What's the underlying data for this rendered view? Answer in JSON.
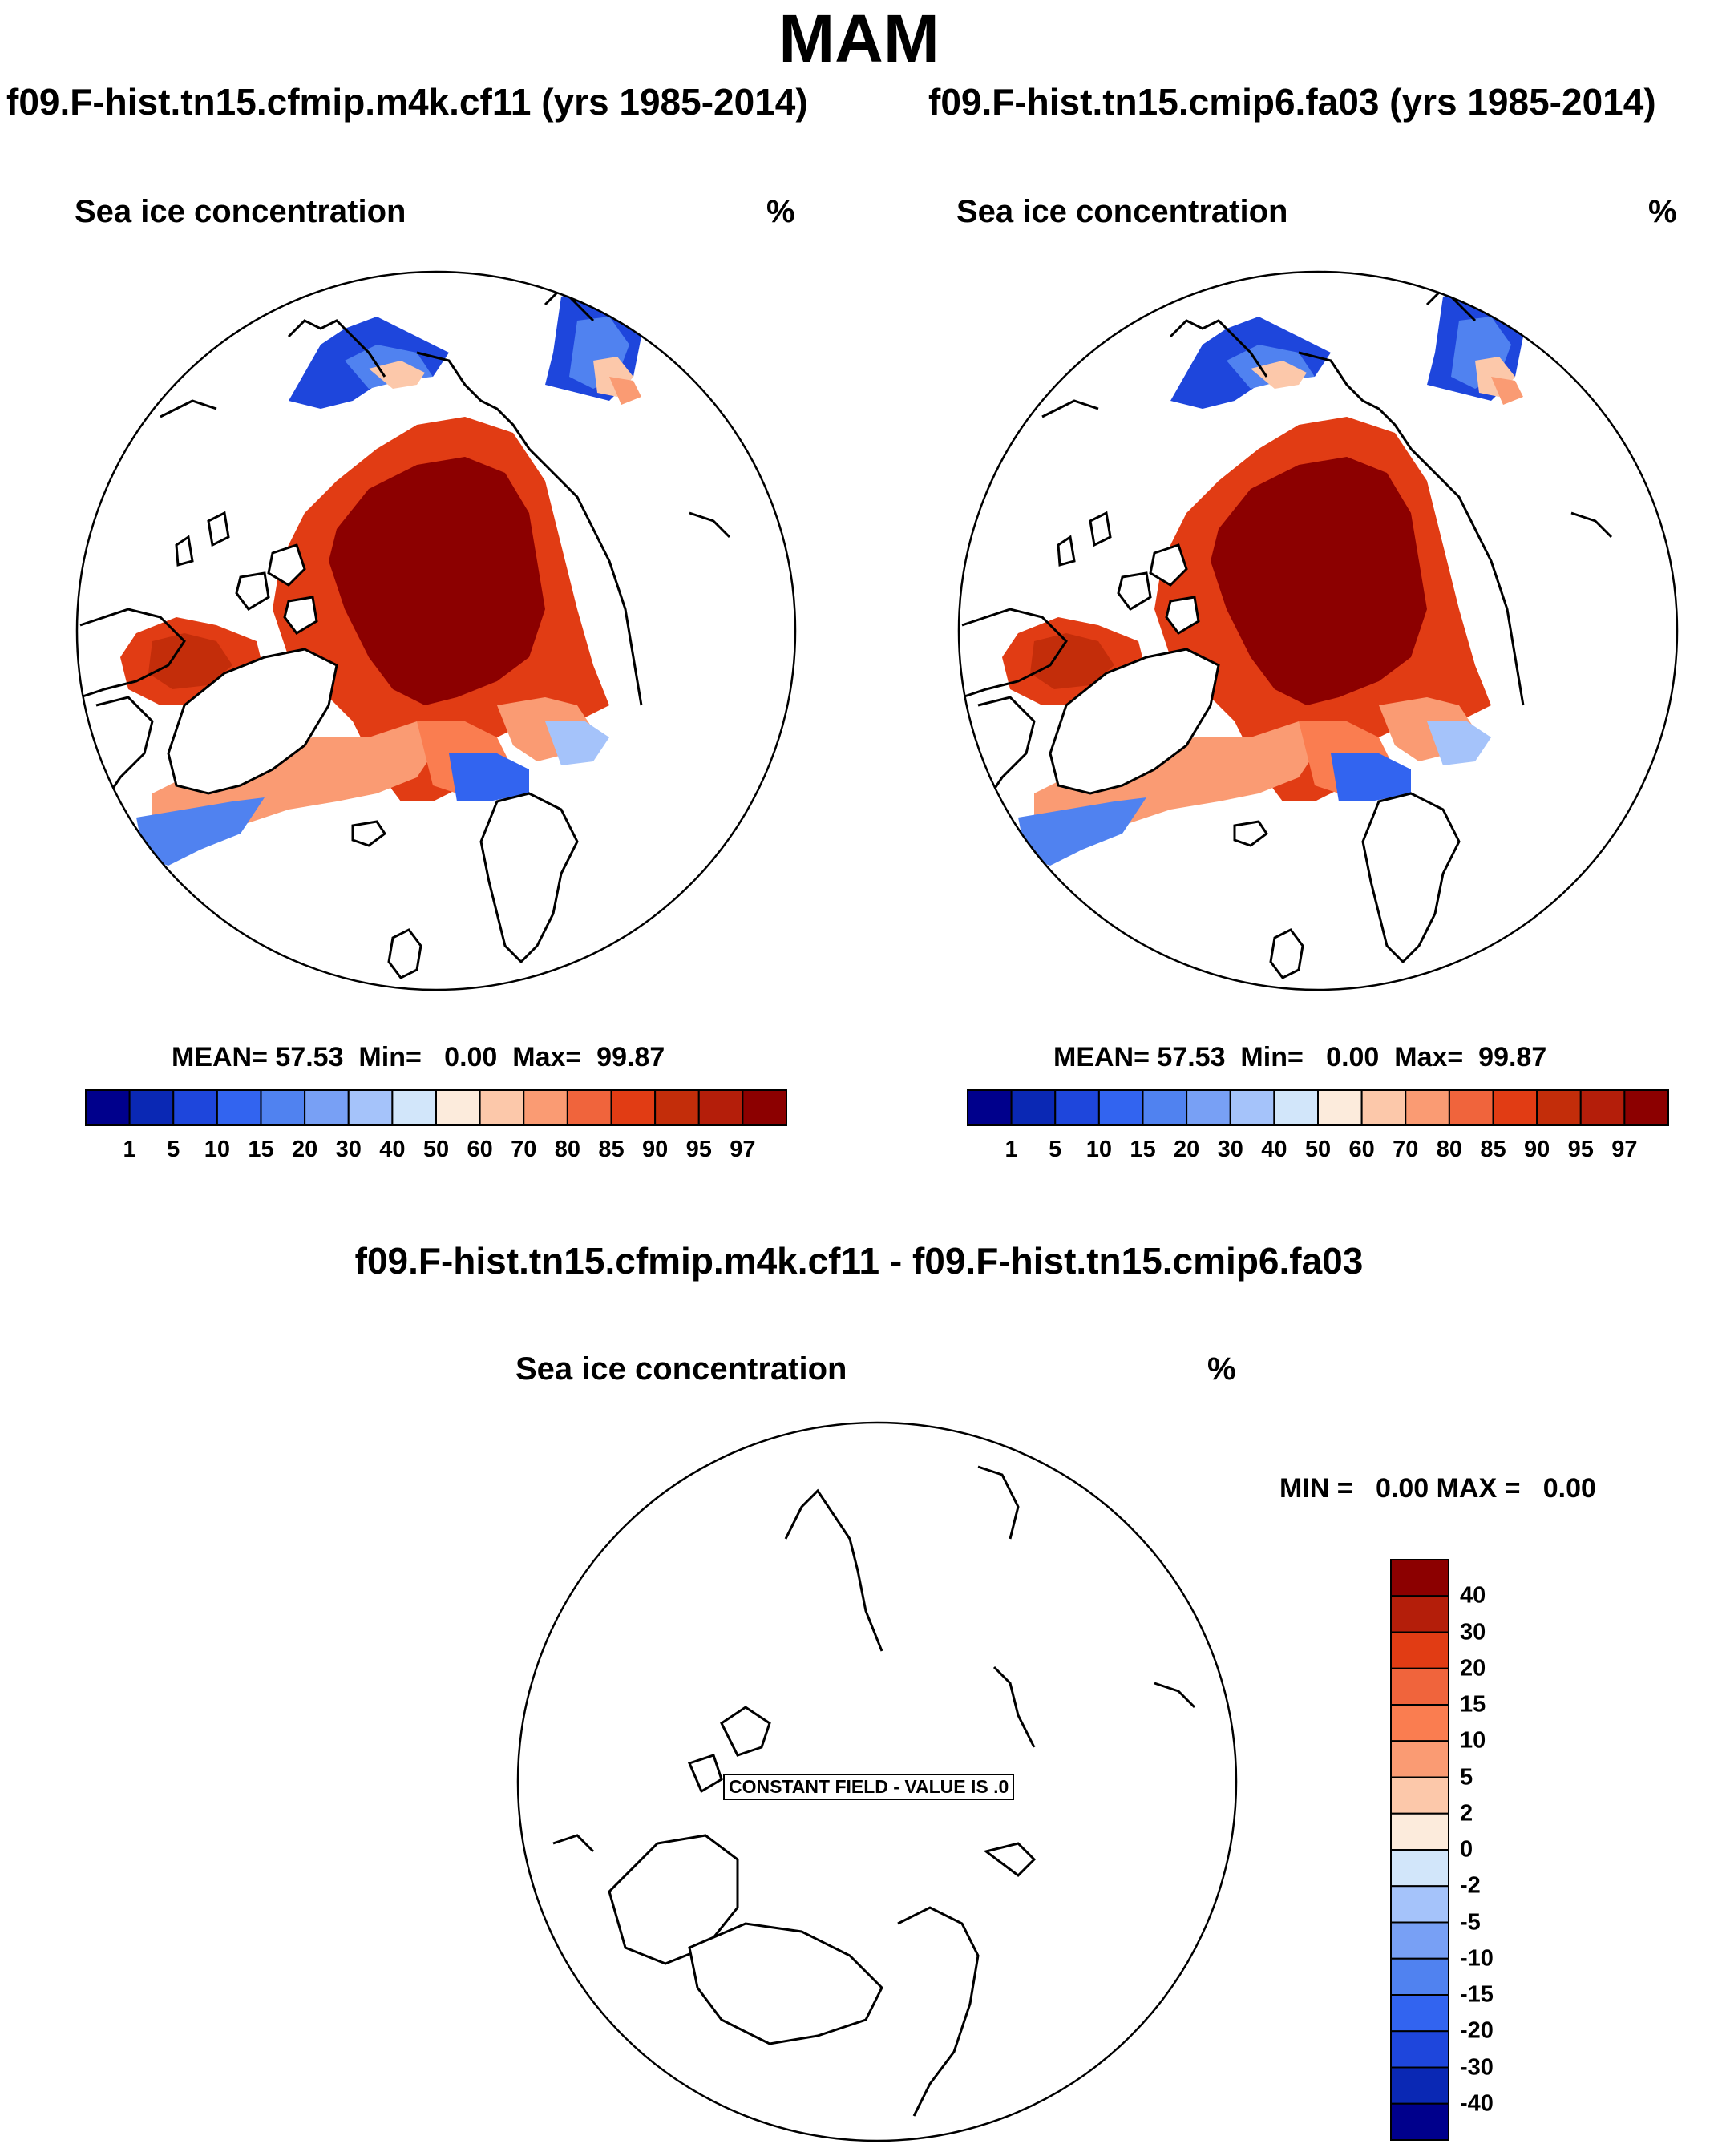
{
  "figure_title": "MAM",
  "top_panels": [
    {
      "case": "f09.F-hist.tn15.cfmip.m4k.cf11 (yrs 1985-2014)",
      "variable": "Sea ice concentration",
      "units": "%",
      "stats": {
        "mean_label": "MEAN=",
        "mean": "57.53",
        "min_label": "Min=",
        "min": "0.00",
        "max_label": "Max=",
        "max": "99.87"
      }
    },
    {
      "case": "f09.F-hist.tn15.cmip6.fa03 (yrs 1985-2014)",
      "variable": "Sea ice concentration",
      "units": "%",
      "stats": {
        "mean_label": "MEAN=",
        "mean": "57.53",
        "min_label": "Min=",
        "min": "0.00",
        "max_label": "Max=",
        "max": "99.87"
      }
    }
  ],
  "top_colorbar": {
    "labels": [
      "1",
      "5",
      "10",
      "15",
      "20",
      "30",
      "40",
      "50",
      "60",
      "70",
      "80",
      "85",
      "90",
      "95",
      "97"
    ],
    "colors": [
      "#00008c",
      "#0a28b4",
      "#1e46dc",
      "#3264f0",
      "#5082f0",
      "#78a0f5",
      "#a5c3fa",
      "#d2e6fa",
      "#fcebdc",
      "#fcc8aa",
      "#fa9b73",
      "#f0643c",
      "#e13c14",
      "#c32d0a",
      "#b41e0a",
      "#8c0000"
    ]
  },
  "diff_panel": {
    "title": "f09.F-hist.tn15.cfmip.m4k.cf11 - f09.F-hist.tn15.cmip6.fa03",
    "variable": "Sea ice concentration",
    "units": "%",
    "minmax": "MIN =   0.00 MAX =   0.00",
    "constant_field": "CONSTANT FIELD - VALUE IS .0"
  },
  "diff_colorbar": {
    "labels": [
      "40",
      "30",
      "20",
      "15",
      "10",
      "5",
      "2",
      "0",
      "-2",
      "-5",
      "-10",
      "-15",
      "-20",
      "-30",
      "-40"
    ],
    "colors": [
      "#8c0000",
      "#b41e0a",
      "#e13c14",
      "#f0643c",
      "#fa7d50",
      "#fa9b73",
      "#fcc8aa",
      "#fcebdc",
      "#d2e6fa",
      "#a5c3fa",
      "#78a0f5",
      "#5082f0",
      "#3264f0",
      "#1e46dc",
      "#0a28b4",
      "#00008c"
    ]
  },
  "chart_data": {
    "type": "map",
    "projection": "north polar stereographic",
    "season": "MAM",
    "variable": "Sea ice concentration",
    "units": "%",
    "panels": [
      {
        "case": "f09.F-hist.tn15.cfmip.m4k.cf11",
        "years": "1985-2014",
        "mean": 57.53,
        "min": 0.0,
        "max": 99.87
      },
      {
        "case": "f09.F-hist.tn15.cmip6.fa03",
        "years": "1985-2014",
        "mean": 57.53,
        "min": 0.0,
        "max": 99.87
      },
      {
        "case": "difference",
        "min": 0.0,
        "max": 0.0,
        "constant_value": 0.0
      }
    ]
  }
}
